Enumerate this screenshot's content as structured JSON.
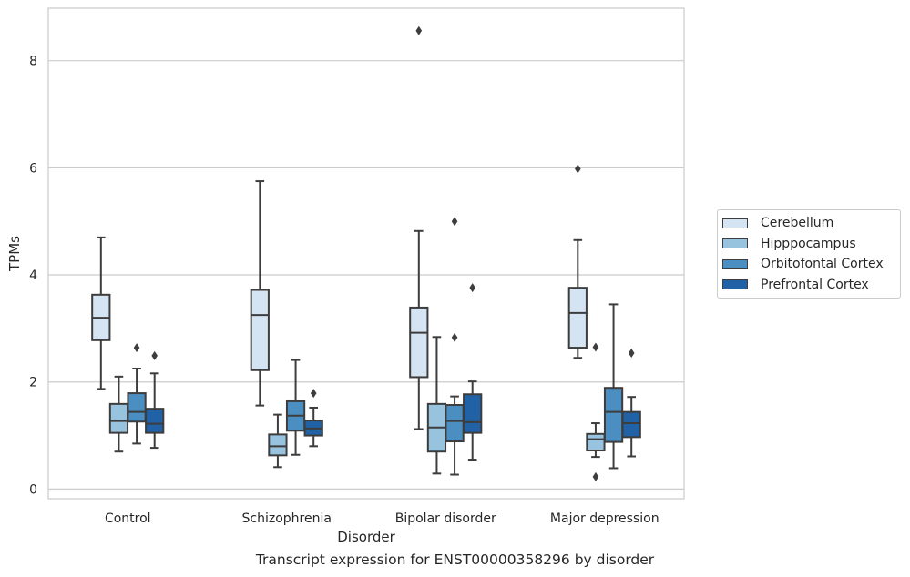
{
  "chart_data": {
    "type": "boxplot",
    "title": "",
    "caption": "Transcript expression for ENST00000358296 by disorder",
    "xlabel": "Disorder",
    "ylabel": "TPMs",
    "ylim": [
      -0.18,
      8.98
    ],
    "yticks": [
      0,
      2,
      4,
      6,
      8
    ],
    "grid": "horizontal",
    "legend_position": "right",
    "categories": [
      "Control",
      "Schizophrenia",
      "Bipolar disorder",
      "Major depression"
    ],
    "series": [
      {
        "name": "Cerebellum",
        "color": "#d5e4f3",
        "boxes": [
          {
            "whislo": 1.87,
            "q1": 2.78,
            "med": 3.2,
            "q3": 3.63,
            "whishi": 4.7,
            "fliers": []
          },
          {
            "whislo": 1.56,
            "q1": 2.22,
            "med": 3.25,
            "q3": 3.72,
            "whishi": 5.75,
            "fliers": []
          },
          {
            "whislo": 1.12,
            "q1": 2.09,
            "med": 2.92,
            "q3": 3.39,
            "whishi": 4.82,
            "fliers": [
              8.56
            ]
          },
          {
            "whislo": 2.45,
            "q1": 2.64,
            "med": 3.29,
            "q3": 3.76,
            "whishi": 4.65,
            "fliers": [
              5.98
            ]
          }
        ]
      },
      {
        "name": "Hipppocampus",
        "color": "#98c3df",
        "boxes": [
          {
            "whislo": 0.7,
            "q1": 1.05,
            "med": 1.27,
            "q3": 1.59,
            "whishi": 2.1,
            "fliers": []
          },
          {
            "whislo": 0.41,
            "q1": 0.63,
            "med": 0.8,
            "q3": 1.02,
            "whishi": 1.39,
            "fliers": []
          },
          {
            "whislo": 0.29,
            "q1": 0.7,
            "med": 1.15,
            "q3": 1.59,
            "whishi": 2.84,
            "fliers": []
          },
          {
            "whislo": 0.6,
            "q1": 0.72,
            "med": 0.93,
            "q3": 1.03,
            "whishi": 1.23,
            "fliers": [
              2.65,
              0.23
            ]
          }
        ]
      },
      {
        "name": "Orbitofontal Cortex",
        "color": "#4b8fc2",
        "boxes": [
          {
            "whislo": 0.85,
            "q1": 1.26,
            "med": 1.44,
            "q3": 1.79,
            "whishi": 2.25,
            "fliers": [
              2.64
            ]
          },
          {
            "whislo": 0.64,
            "q1": 1.09,
            "med": 1.37,
            "q3": 1.64,
            "whishi": 2.41,
            "fliers": []
          },
          {
            "whislo": 0.27,
            "q1": 0.89,
            "med": 1.27,
            "q3": 1.57,
            "whishi": 1.73,
            "fliers": [
              5.0,
              2.83
            ]
          },
          {
            "whislo": 0.39,
            "q1": 0.88,
            "med": 1.44,
            "q3": 1.89,
            "whishi": 3.45,
            "fliers": []
          }
        ]
      },
      {
        "name": "Prefrontal Cortex",
        "color": "#2161a5",
        "boxes": [
          {
            "whislo": 0.77,
            "q1": 1.05,
            "med": 1.22,
            "q3": 1.5,
            "whishi": 2.16,
            "fliers": [
              2.49
            ]
          },
          {
            "whislo": 0.8,
            "q1": 1.0,
            "med": 1.13,
            "q3": 1.28,
            "whishi": 1.52,
            "fliers": [
              1.79
            ]
          },
          {
            "whislo": 0.55,
            "q1": 1.05,
            "med": 1.25,
            "q3": 1.77,
            "whishi": 2.01,
            "fliers": [
              3.76
            ]
          },
          {
            "whislo": 0.61,
            "q1": 0.97,
            "med": 1.23,
            "q3": 1.44,
            "whishi": 1.72,
            "fliers": [
              2.54
            ]
          }
        ]
      }
    ]
  }
}
